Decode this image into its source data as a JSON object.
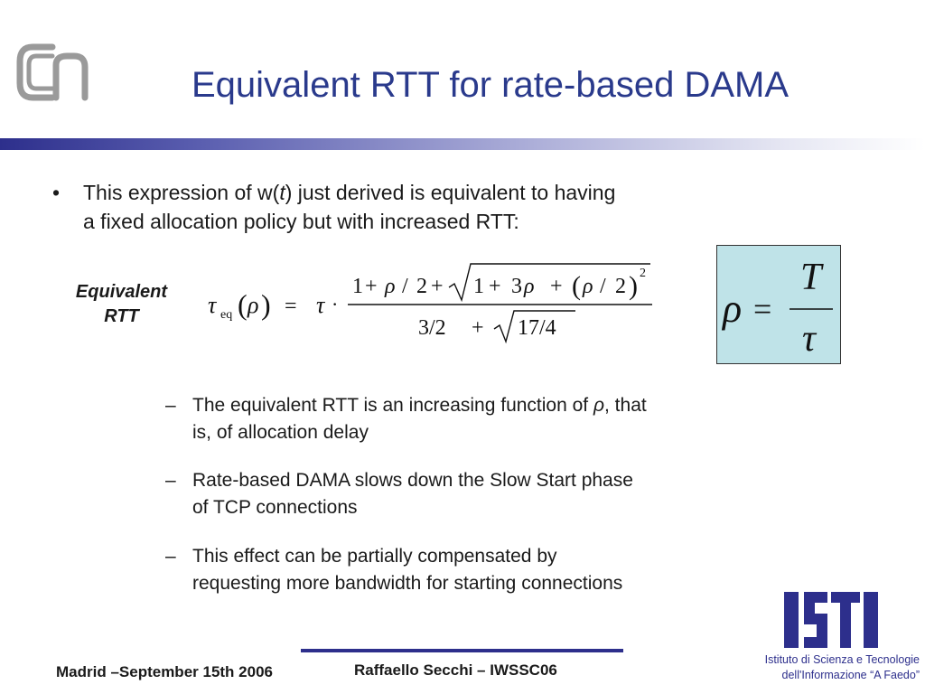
{
  "title": "Equivalent RTT for rate-based DAMA",
  "bullet": {
    "marker": "•",
    "text_a": "This expression of w(",
    "text_t": "t",
    "text_b": ") just derived is equivalent to having",
    "text_line2": "a fixed allocation policy but with increased RTT:"
  },
  "equation_label": {
    "line1": "Equivalent",
    "line2": "RTT"
  },
  "formula": {
    "tau": "τ",
    "sub_eq": "eq",
    "rho": "ρ",
    "eq": "=",
    "cdot": "·",
    "num_1": "1",
    "plus": "+",
    "slash": "/",
    "two": "2",
    "three": "3",
    "n_32": "3/2",
    "n_174": "17/4",
    "exp": "2",
    "lparen": "(",
    "rparen": ")"
  },
  "rho_def": {
    "rho": "ρ",
    "eq": "=",
    "T": "T",
    "tau": "τ"
  },
  "sub_bullets": [
    {
      "dash": "–",
      "a": "The equivalent RTT is an increasing function of ",
      "rho": "ρ",
      "b": ", that",
      "line2": "is, of allocation delay"
    },
    {
      "dash": "–",
      "line1": "Rate-based DAMA slows down the Slow Start phase",
      "line2": "of TCP connections"
    },
    {
      "dash": "–",
      "line1": "This effect can be partially compensated by",
      "line2": "requesting more bandwidth for starting connections"
    }
  ],
  "footer": {
    "left": "Madrid –September 15th 2006",
    "center": "Raffaello Secchi – IWSSC06",
    "institute_line1": "Istituto di Scienza e Tecnologie",
    "institute_line2": "dell'Informazione “A Faedo”"
  },
  "colors": {
    "title": "#2a3a8c",
    "accent": "#2d2f8c",
    "rho_box": "#bfe3e8"
  },
  "icons": {
    "top_left_logo": "cnr-logo",
    "bottom_right_logo": "isti-logo"
  }
}
